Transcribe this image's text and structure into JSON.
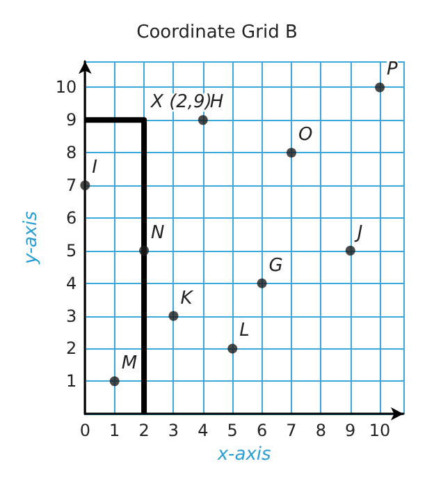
{
  "chart_data": {
    "type": "scatter",
    "title": "Coordinate Grid B",
    "xlabel": "x-axis",
    "ylabel": "y-axis",
    "xlim": [
      0,
      10.8
    ],
    "ylim": [
      0,
      10.8
    ],
    "xticks": [
      0,
      1,
      2,
      3,
      4,
      5,
      6,
      7,
      8,
      9,
      10
    ],
    "yticks": [
      1,
      2,
      3,
      4,
      5,
      6,
      7,
      8,
      9,
      10
    ],
    "grid": true,
    "marker": "circle",
    "series": [
      {
        "color": "#1a1a1a",
        "x": [
          4,
          7,
          10,
          0,
          2,
          9,
          6,
          3,
          5,
          1
        ],
        "values": [
          9,
          8,
          10,
          7,
          5,
          5,
          4,
          3,
          2,
          1
        ]
      },
      {
        "type": "line",
        "color": "#000000",
        "marker": "none",
        "line_style": "solid",
        "x": [
          0,
          2,
          2
        ],
        "values": [
          9,
          9,
          0
        ]
      }
    ],
    "annotations": [
      {
        "text": "X (2,9)",
        "x": 2,
        "y": 9
      },
      {
        "text": "H",
        "x": 4,
        "y": 9
      },
      {
        "text": "O",
        "x": 7,
        "y": 8
      },
      {
        "text": "P",
        "x": 10,
        "y": 10
      },
      {
        "text": "I",
        "x": 0,
        "y": 7
      },
      {
        "text": "N",
        "x": 2,
        "y": 5
      },
      {
        "text": "J",
        "x": 9,
        "y": 5
      },
      {
        "text": "G",
        "x": 6,
        "y": 4
      },
      {
        "text": "K",
        "x": 3,
        "y": 3
      },
      {
        "text": "L",
        "x": 5,
        "y": 2
      },
      {
        "text": "M",
        "x": 1,
        "y": 1
      }
    ]
  }
}
